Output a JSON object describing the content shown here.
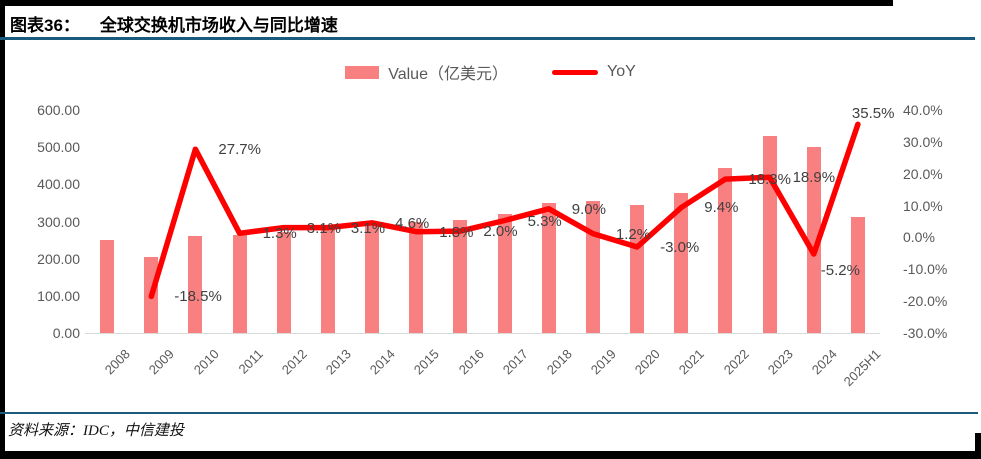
{
  "header": {
    "label": "图表36：",
    "title": "全球交换机市场收入与同比增速"
  },
  "legend": {
    "value_label": "Value（亿美元）",
    "yoy_label": "YoY"
  },
  "footer": {
    "source": "资料来源：IDC，中信建投"
  },
  "colors": {
    "bar": "#F98080",
    "line": "#FF0000",
    "rule_blue": "#1A5A7E",
    "axis_text": "#595959",
    "data_label_text": "#404040"
  },
  "chart_data": {
    "type": "bar",
    "title": "全球交换机市场收入与同比增速",
    "categories": [
      "2008",
      "2009",
      "2010",
      "2011",
      "2012",
      "2013",
      "2014",
      "2015",
      "2016",
      "2017",
      "2018",
      "2019",
      "2020",
      "2021",
      "2022",
      "2023",
      "2024",
      "2025H1"
    ],
    "series": [
      {
        "name": "Value（亿美元）",
        "type": "bar",
        "axis": "left",
        "values": [
          250,
          204,
          260,
          264,
          272,
          281,
          294,
          299,
          305,
          321,
          350,
          354,
          344,
          376,
          445,
          529,
          501,
          311
        ]
      },
      {
        "name": "YoY",
        "type": "line",
        "axis": "right",
        "values": [
          null,
          -18.5,
          27.7,
          1.3,
          3.1,
          3.1,
          4.6,
          1.8,
          2.0,
          5.3,
          9.0,
          1.2,
          -3.0,
          9.4,
          18.3,
          18.9,
          -5.2,
          35.5
        ],
        "point_labels": [
          null,
          "-18.5%",
          "27.7%",
          "1.3%",
          "3.1%",
          "3.1%",
          "4.6%",
          "1.8%",
          "2.0%",
          "5.3%",
          "9.0%",
          "1.2%",
          "-3.0%",
          "9.4%",
          "18.3%",
          "18.9%",
          "-5.2%",
          "35.5%"
        ]
      }
    ],
    "left_axis": {
      "min": 0,
      "max": 600,
      "ticks": [
        "600.00",
        "500.00",
        "400.00",
        "300.00",
        "200.00",
        "100.00",
        "0.00"
      ]
    },
    "right_axis": {
      "min": -30,
      "max": 40,
      "ticks": [
        "40.0%",
        "30.0%",
        "20.0%",
        "10.0%",
        "0.0%",
        "-10.0%",
        "-20.0%",
        "-30.0%"
      ]
    },
    "label_offsets": {
      "16": [
        7,
        9
      ],
      "17": [
        -6,
        -18
      ]
    },
    "grid": false,
    "legend_position": "top-center"
  }
}
